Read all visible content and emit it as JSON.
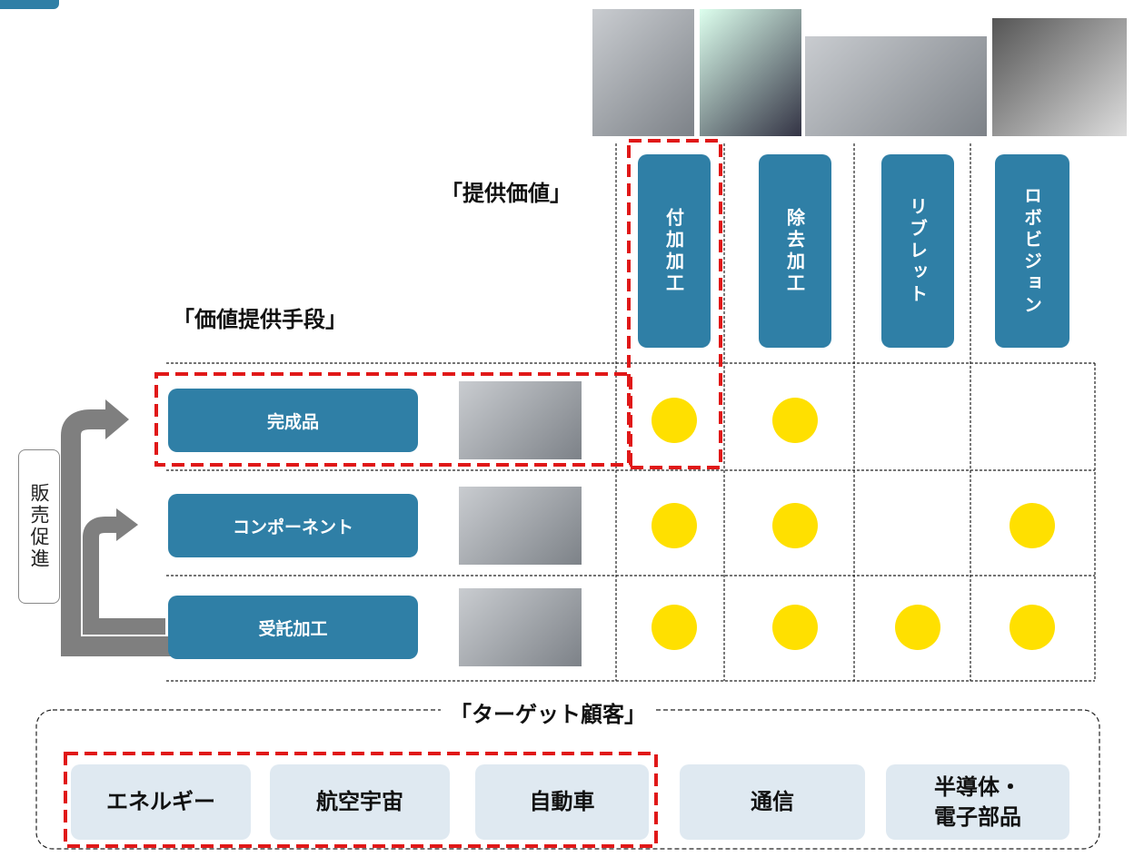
{
  "value_header": "「提供価値」",
  "means_header": "「価値提供手段」",
  "values": [
    "付加加工",
    "除去加工",
    "リブレット",
    "ロボビジョン"
  ],
  "means": [
    {
      "label": "完成品",
      "marks": [
        true,
        true,
        false,
        false
      ]
    },
    {
      "label": "コンポーネント",
      "marks": [
        true,
        true,
        false,
        true
      ]
    },
    {
      "label": "受託加工",
      "marks": [
        true,
        true,
        true,
        true
      ]
    }
  ],
  "sales_promotion": "販売促進",
  "target_header": "「ターゲット顧客」",
  "customers": [
    "エネルギー",
    "航空宇宙",
    "自動車",
    "通信",
    "半導体・\n電子部品"
  ]
}
